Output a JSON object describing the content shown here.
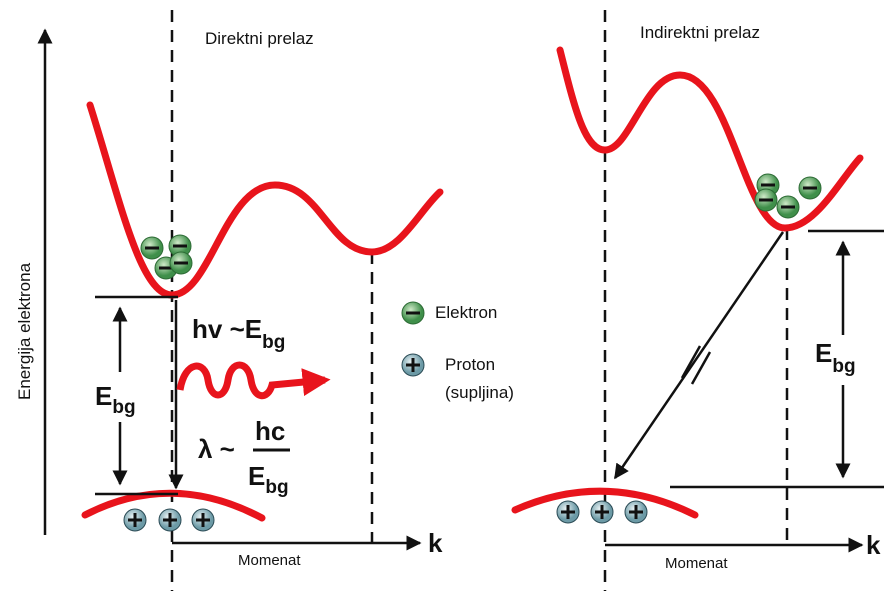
{
  "left_panel": {
    "title": "Direktni prelaz",
    "y_axis_label": "Energija elektrona",
    "x_axis_label": "Momenat",
    "x_axis_end": "k",
    "gap_label": {
      "main": "E",
      "sub": "bg"
    },
    "photon_label": {
      "main": "hv ~E",
      "sub": "bg"
    },
    "wavelength": {
      "prefix": "λ ~",
      "numerator": "hc",
      "denominator": {
        "main": "E",
        "sub": "bg"
      }
    }
  },
  "legend": {
    "electron": "Elektron",
    "proton": [
      "Proton",
      "(supljina)"
    ]
  },
  "right_panel": {
    "title": "Indirektni prelaz",
    "x_axis_label": "Momenat",
    "x_axis_end": "k",
    "gap_label": {
      "main": "E",
      "sub": "bg"
    }
  }
}
